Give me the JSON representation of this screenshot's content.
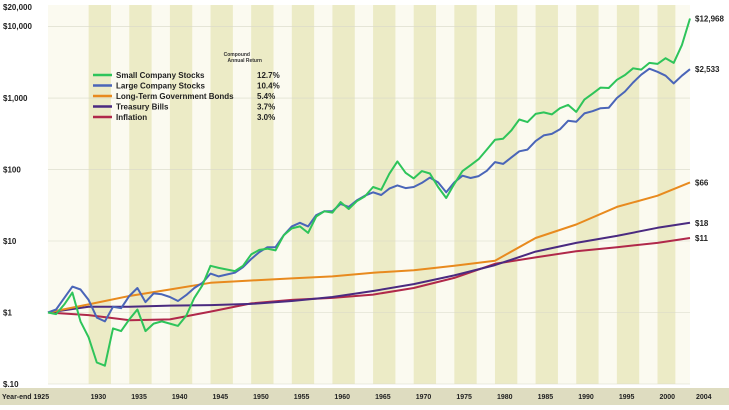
{
  "chart_data": {
    "type": "line",
    "y_scale": "log",
    "ylim": [
      0.1,
      20000
    ],
    "xlim": [
      1925,
      2004
    ],
    "grid": true,
    "legend_position": "top-left",
    "legend_header": "Compound Annual Return",
    "y_ticks": [
      {
        "value": 20000,
        "label": "$20,000"
      },
      {
        "value": 10000,
        "label": "$10,000"
      },
      {
        "value": 1000,
        "label": "$1,000"
      },
      {
        "value": 100,
        "label": "$100"
      },
      {
        "value": 10,
        "label": "$10"
      },
      {
        "value": 1,
        "label": "$1"
      },
      {
        "value": 0.1,
        "label": "$.10"
      }
    ],
    "x_ticks": [
      {
        "value": 1925,
        "label": "Year-end 1925"
      },
      {
        "value": 1930,
        "label": "1930"
      },
      {
        "value": 1935,
        "label": "1935"
      },
      {
        "value": 1940,
        "label": "1940"
      },
      {
        "value": 1945,
        "label": "1945"
      },
      {
        "value": 1950,
        "label": "1950"
      },
      {
        "value": 1955,
        "label": "1955"
      },
      {
        "value": 1960,
        "label": "1960"
      },
      {
        "value": 1965,
        "label": "1965"
      },
      {
        "value": 1970,
        "label": "1970"
      },
      {
        "value": 1975,
        "label": "1975"
      },
      {
        "value": 1980,
        "label": "1980"
      },
      {
        "value": 1985,
        "label": "1985"
      },
      {
        "value": 1990,
        "label": "1990"
      },
      {
        "value": 1995,
        "label": "1995"
      },
      {
        "value": 2000,
        "label": "2000"
      },
      {
        "value": 2004,
        "label": "2004"
      }
    ],
    "series": [
      {
        "name": "Small Company Stocks",
        "return": "12.7%",
        "end_label": "$12,968",
        "color": "#2ec45a",
        "x": [
          1925,
          1926,
          1927,
          1928,
          1929,
          1930,
          1931,
          1932,
          1933,
          1934,
          1935,
          1936,
          1937,
          1938,
          1939,
          1940,
          1941,
          1942,
          1943,
          1944,
          1945,
          1946,
          1947,
          1948,
          1949,
          1950,
          1951,
          1952,
          1953,
          1954,
          1955,
          1956,
          1957,
          1958,
          1959,
          1960,
          1961,
          1962,
          1963,
          1964,
          1965,
          1966,
          1967,
          1968,
          1969,
          1970,
          1971,
          1972,
          1973,
          1974,
          1975,
          1976,
          1977,
          1978,
          1979,
          1980,
          1981,
          1982,
          1983,
          1984,
          1985,
          1986,
          1987,
          1988,
          1989,
          1990,
          1991,
          1992,
          1993,
          1994,
          1995,
          1996,
          1997,
          1998,
          1999,
          2000,
          2001,
          2002,
          2003,
          2004
        ],
        "values": [
          1.0,
          0.95,
          1.3,
          1.9,
          0.75,
          0.45,
          0.2,
          0.18,
          0.6,
          0.55,
          0.8,
          1.1,
          0.55,
          0.7,
          0.75,
          0.7,
          0.65,
          0.9,
          1.6,
          2.4,
          4.5,
          4.2,
          4.0,
          3.8,
          4.5,
          6.5,
          7.5,
          7.8,
          7.4,
          12,
          15,
          16,
          13,
          22,
          26,
          25,
          35,
          28,
          36,
          42,
          57,
          52,
          87,
          130,
          90,
          75,
          95,
          88,
          57,
          40,
          63,
          95,
          115,
          140,
          190,
          260,
          270,
          350,
          500,
          460,
          600,
          630,
          590,
          720,
          800,
          640,
          950,
          1150,
          1400,
          1380,
          1800,
          2100,
          2600,
          2500,
          3100,
          3000,
          3600,
          3100,
          5500,
          12968
        ]
      },
      {
        "name": "Large Company Stocks",
        "return": "10.4%",
        "end_label": "$2,533",
        "color": "#4a65b8",
        "x": [
          1925,
          1926,
          1927,
          1928,
          1929,
          1930,
          1931,
          1932,
          1933,
          1934,
          1935,
          1936,
          1937,
          1938,
          1939,
          1940,
          1941,
          1942,
          1943,
          1944,
          1945,
          1946,
          1947,
          1948,
          1949,
          1950,
          1951,
          1952,
          1953,
          1954,
          1955,
          1956,
          1957,
          1958,
          1959,
          1960,
          1961,
          1962,
          1963,
          1964,
          1965,
          1966,
          1967,
          1968,
          1969,
          1970,
          1971,
          1972,
          1973,
          1974,
          1975,
          1976,
          1977,
          1978,
          1979,
          1980,
          1981,
          1982,
          1983,
          1984,
          1985,
          1986,
          1987,
          1988,
          1989,
          1990,
          1991,
          1992,
          1993,
          1994,
          1995,
          1996,
          1997,
          1998,
          1999,
          2000,
          2001,
          2002,
          2003,
          2004
        ],
        "values": [
          1.0,
          1.1,
          1.6,
          2.3,
          2.1,
          1.5,
          0.85,
          0.75,
          1.2,
          1.15,
          1.7,
          2.2,
          1.4,
          1.85,
          1.8,
          1.65,
          1.45,
          1.75,
          2.2,
          2.6,
          3.5,
          3.2,
          3.4,
          3.6,
          4.3,
          5.6,
          7.0,
          8.2,
          8.2,
          12,
          16,
          18,
          16,
          23,
          26,
          26,
          33,
          30,
          37,
          43,
          48,
          44,
          54,
          60,
          55,
          57,
          65,
          77,
          66,
          48,
          66,
          82,
          76,
          81,
          96,
          127,
          120,
          147,
          180,
          190,
          250,
          300,
          315,
          365,
          480,
          465,
          610,
          655,
          720,
          730,
          1000,
          1235,
          1650,
          2120,
          2570,
          2330,
          2050,
          1600,
          2050,
          2533
        ]
      },
      {
        "name": "Long-Term Government Bonds",
        "return": "5.4%",
        "end_label": "$66",
        "color": "#e88a1e",
        "x": [
          1925,
          1930,
          1935,
          1940,
          1945,
          1950,
          1955,
          1960,
          1965,
          1970,
          1975,
          1980,
          1985,
          1990,
          1995,
          2000,
          2004
        ],
        "values": [
          1.0,
          1.3,
          1.7,
          2.1,
          2.6,
          2.8,
          3.0,
          3.2,
          3.6,
          3.9,
          4.5,
          5.3,
          11.0,
          17.0,
          30.0,
          43.0,
          66.0
        ]
      },
      {
        "name": "Treasury Bills",
        "return": "3.7%",
        "end_label": "$18",
        "color": "#4a2a80",
        "x": [
          1925,
          1930,
          1935,
          1940,
          1945,
          1950,
          1955,
          1960,
          1965,
          1970,
          1975,
          1980,
          1985,
          1990,
          1995,
          2000,
          2004
        ],
        "values": [
          1.0,
          1.2,
          1.2,
          1.25,
          1.27,
          1.32,
          1.45,
          1.65,
          2.0,
          2.5,
          3.3,
          4.6,
          7.1,
          9.4,
          11.8,
          15.3,
          18.0
        ]
      },
      {
        "name": "Inflation",
        "return": "3.0%",
        "end_label": "$11",
        "color": "#b0284a",
        "x": [
          1925,
          1930,
          1935,
          1940,
          1945,
          1950,
          1955,
          1960,
          1965,
          1970,
          1975,
          1980,
          1985,
          1990,
          1995,
          2000,
          2004
        ],
        "values": [
          1.0,
          0.92,
          0.78,
          0.8,
          1.03,
          1.34,
          1.5,
          1.6,
          1.78,
          2.2,
          3.05,
          4.8,
          5.9,
          7.2,
          8.2,
          9.4,
          11.0
        ]
      }
    ]
  }
}
